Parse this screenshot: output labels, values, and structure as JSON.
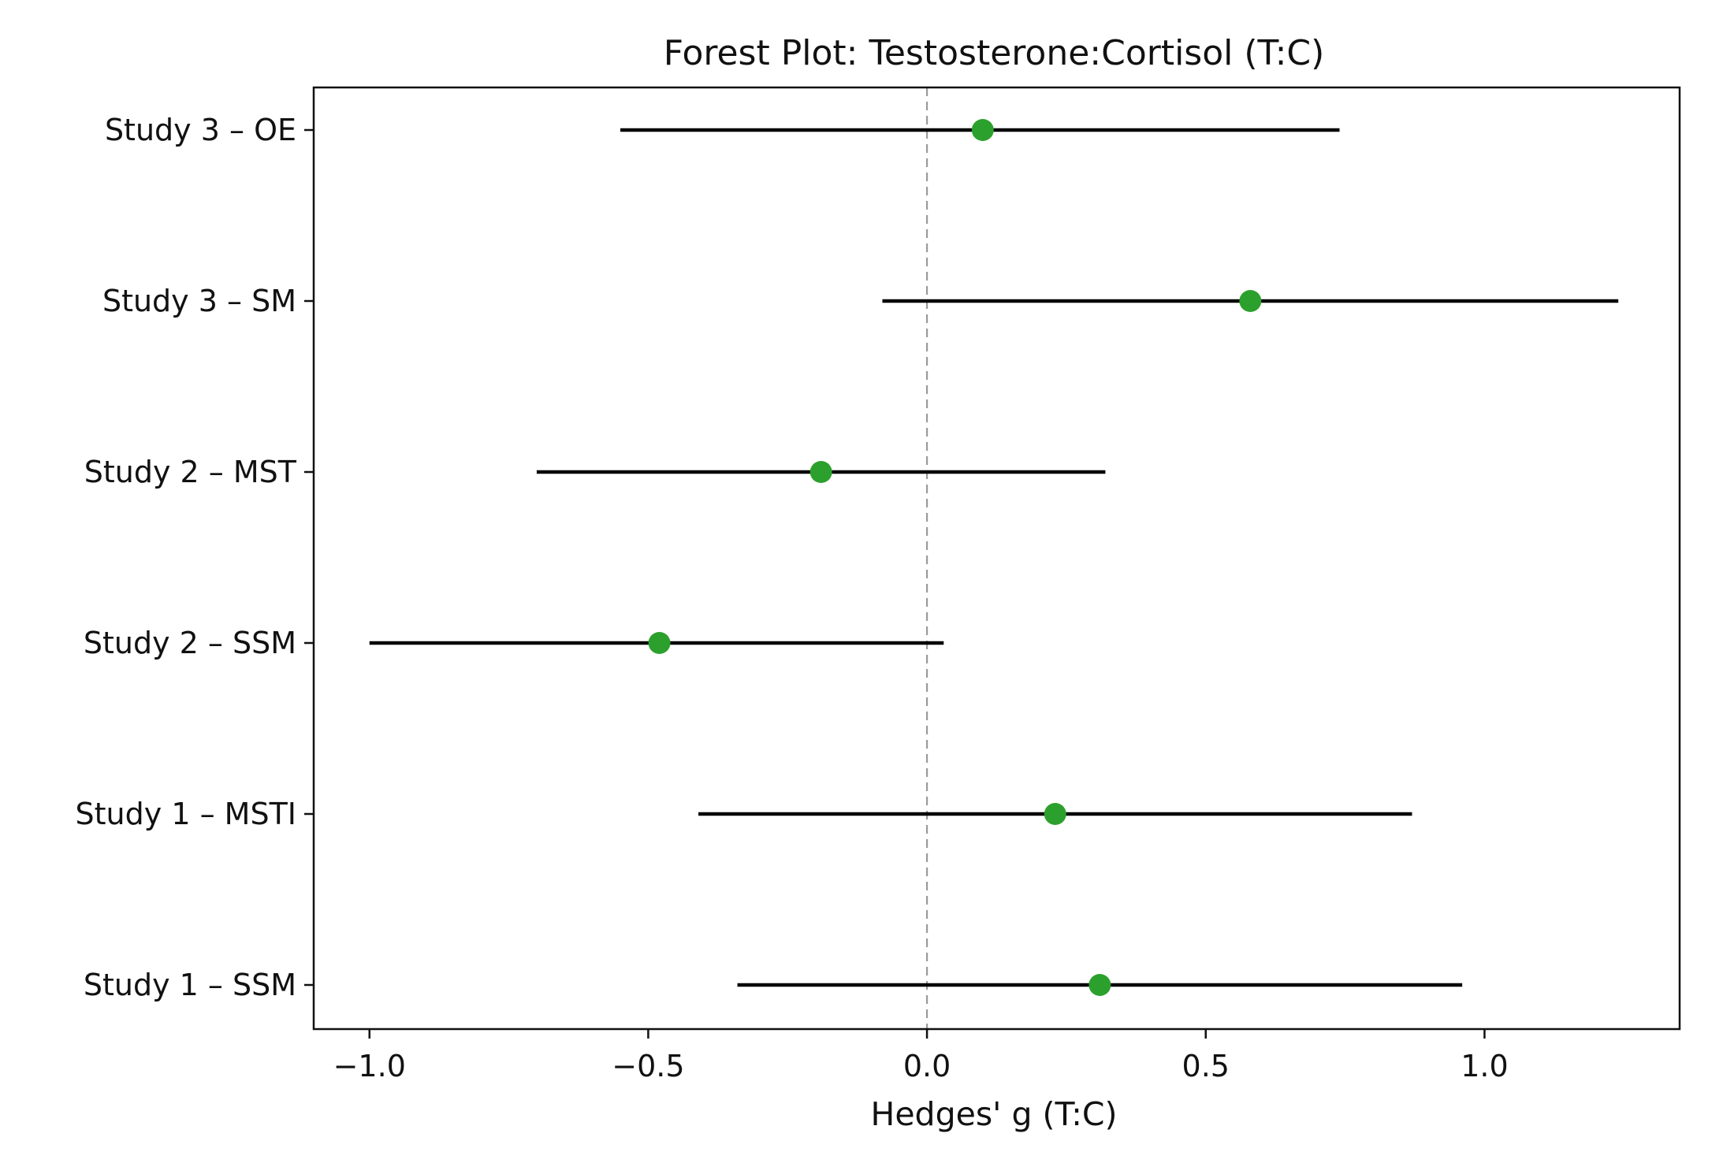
{
  "chart_data": {
    "type": "forest",
    "title": "Forest Plot: Testosterone:Cortisol (T:C)",
    "xlabel": "Hedges' g (T:C)",
    "ylabel": "",
    "xlim": [
      -1.1,
      1.35
    ],
    "xticks": [
      -1.0,
      -0.5,
      0.0,
      0.5,
      1.0
    ],
    "xtick_labels": [
      "−1.0",
      "−0.5",
      "0.0",
      "0.5",
      "1.0"
    ],
    "reference_line": 0.0,
    "grid": false,
    "point_color": "#2ca02c",
    "ci_color": "#000000",
    "rows": [
      {
        "label": "Study 3 – OE",
        "estimate": 0.1,
        "ci_low": -0.55,
        "ci_high": 0.74
      },
      {
        "label": "Study 3 – SM",
        "estimate": 0.58,
        "ci_low": -0.08,
        "ci_high": 1.24
      },
      {
        "label": "Study 2 – MST",
        "estimate": -0.19,
        "ci_low": -0.7,
        "ci_high": 0.32
      },
      {
        "label": "Study 2 – SSM",
        "estimate": -0.48,
        "ci_low": -1.0,
        "ci_high": 0.03
      },
      {
        "label": "Study 1 – MSTI",
        "estimate": 0.23,
        "ci_low": -0.41,
        "ci_high": 0.87
      },
      {
        "label": "Study 1 – SSM",
        "estimate": 0.31,
        "ci_low": -0.34,
        "ci_high": 0.96
      }
    ]
  }
}
